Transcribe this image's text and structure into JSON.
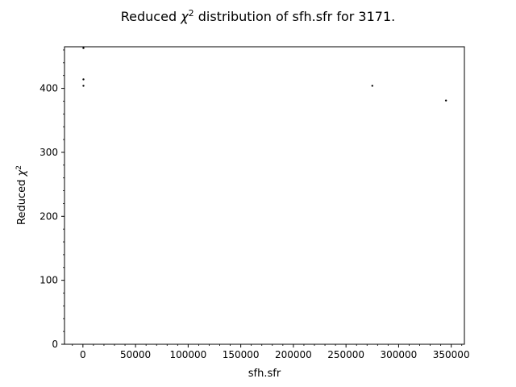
{
  "chart_data": {
    "type": "scatter",
    "title_prefix": "Reduced ",
    "title_symbol": "χ",
    "title_sup": "2",
    "title_suffix": " distribution of sfh.sfr for 3171.",
    "xlabel": "sfh.sfr",
    "ylabel_prefix": "Reduced ",
    "ylabel_symbol": "χ",
    "ylabel_sup": "2",
    "xlim": [
      -17500,
      362500
    ],
    "ylim": [
      0,
      465
    ],
    "xticks": [
      0,
      50000,
      100000,
      150000,
      200000,
      250000,
      300000,
      350000
    ],
    "yticks": [
      0,
      100,
      200,
      300,
      400
    ],
    "x": [
      500,
      500,
      500,
      275000,
      345000
    ],
    "y": [
      463,
      414,
      404,
      404,
      381
    ],
    "marker_color": "#000000"
  }
}
